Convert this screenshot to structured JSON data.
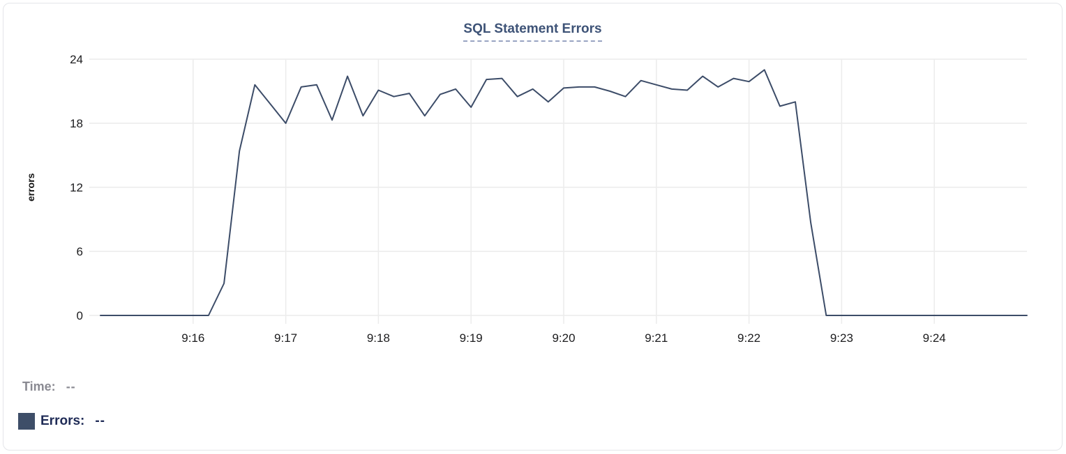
{
  "card": {
    "title": "SQL Statement Errors"
  },
  "legend": {
    "time_label": "Time:",
    "time_value": "--",
    "errors_label": "Errors:",
    "errors_value": "--",
    "swatch_color": "#3e4e68"
  },
  "colors": {
    "line": "#3c4c68",
    "grid": "#ececec",
    "title_text": "#3e5377",
    "title_underline": "#98a4c2",
    "axis_text": "#1c1c1e",
    "legend_gray": "#8a8a92",
    "legend_navy": "#202c57",
    "card_border": "#e4e5e9"
  },
  "chart_data": {
    "type": "line",
    "title": "SQL Statement Errors",
    "xlabel": "",
    "ylabel": "errors",
    "ylim": [
      0,
      24
    ],
    "yticks": [
      0,
      6,
      12,
      18,
      24
    ],
    "xtick_labels": [
      "9:16",
      "9:17",
      "9:18",
      "9:19",
      "9:20",
      "9:21",
      "9:22",
      "9:23",
      "9:24"
    ],
    "x_range": [
      "9:15:00",
      "9:25:00"
    ],
    "interval_seconds": 10,
    "grid": true,
    "legend_position": "bottom-left",
    "series": [
      {
        "name": "Errors",
        "color": "#3c4c68",
        "x": [
          "9:15:00",
          "9:15:10",
          "9:15:20",
          "9:15:30",
          "9:15:40",
          "9:15:50",
          "9:16:00",
          "9:16:10",
          "9:16:20",
          "9:16:30",
          "9:16:40",
          "9:16:50",
          "9:17:00",
          "9:17:10",
          "9:17:20",
          "9:17:30",
          "9:17:40",
          "9:17:50",
          "9:18:00",
          "9:18:10",
          "9:18:20",
          "9:18:30",
          "9:18:40",
          "9:18:50",
          "9:19:00",
          "9:19:10",
          "9:19:20",
          "9:19:30",
          "9:19:40",
          "9:19:50",
          "9:20:00",
          "9:20:10",
          "9:20:20",
          "9:20:30",
          "9:20:40",
          "9:20:50",
          "9:21:00",
          "9:21:10",
          "9:21:20",
          "9:21:30",
          "9:21:40",
          "9:21:50",
          "9:22:00",
          "9:22:10",
          "9:22:20",
          "9:22:30",
          "9:22:40",
          "9:22:50",
          "9:23:00",
          "9:23:10",
          "9:23:20",
          "9:23:30",
          "9:23:40",
          "9:23:50",
          "9:24:00",
          "9:24:10",
          "9:24:20",
          "9:24:30",
          "9:24:40",
          "9:24:50",
          "9:25:00"
        ],
        "values": [
          0,
          0,
          0,
          0,
          0,
          0,
          0,
          0,
          3,
          15.4,
          21.6,
          19.8,
          18,
          21.4,
          21.6,
          18.3,
          22.4,
          18.7,
          21.1,
          20.5,
          20.8,
          18.7,
          20.7,
          21.2,
          19.5,
          22.1,
          22.2,
          20.5,
          21.2,
          20,
          21.3,
          21.4,
          21.4,
          21,
          20.5,
          22,
          21.6,
          21.2,
          21.1,
          22.4,
          21.4,
          22.2,
          21.9,
          23,
          19.6,
          20,
          8.7,
          0,
          0,
          0,
          0,
          0,
          0,
          0,
          0,
          0,
          0,
          0,
          0,
          0,
          0
        ]
      }
    ]
  }
}
